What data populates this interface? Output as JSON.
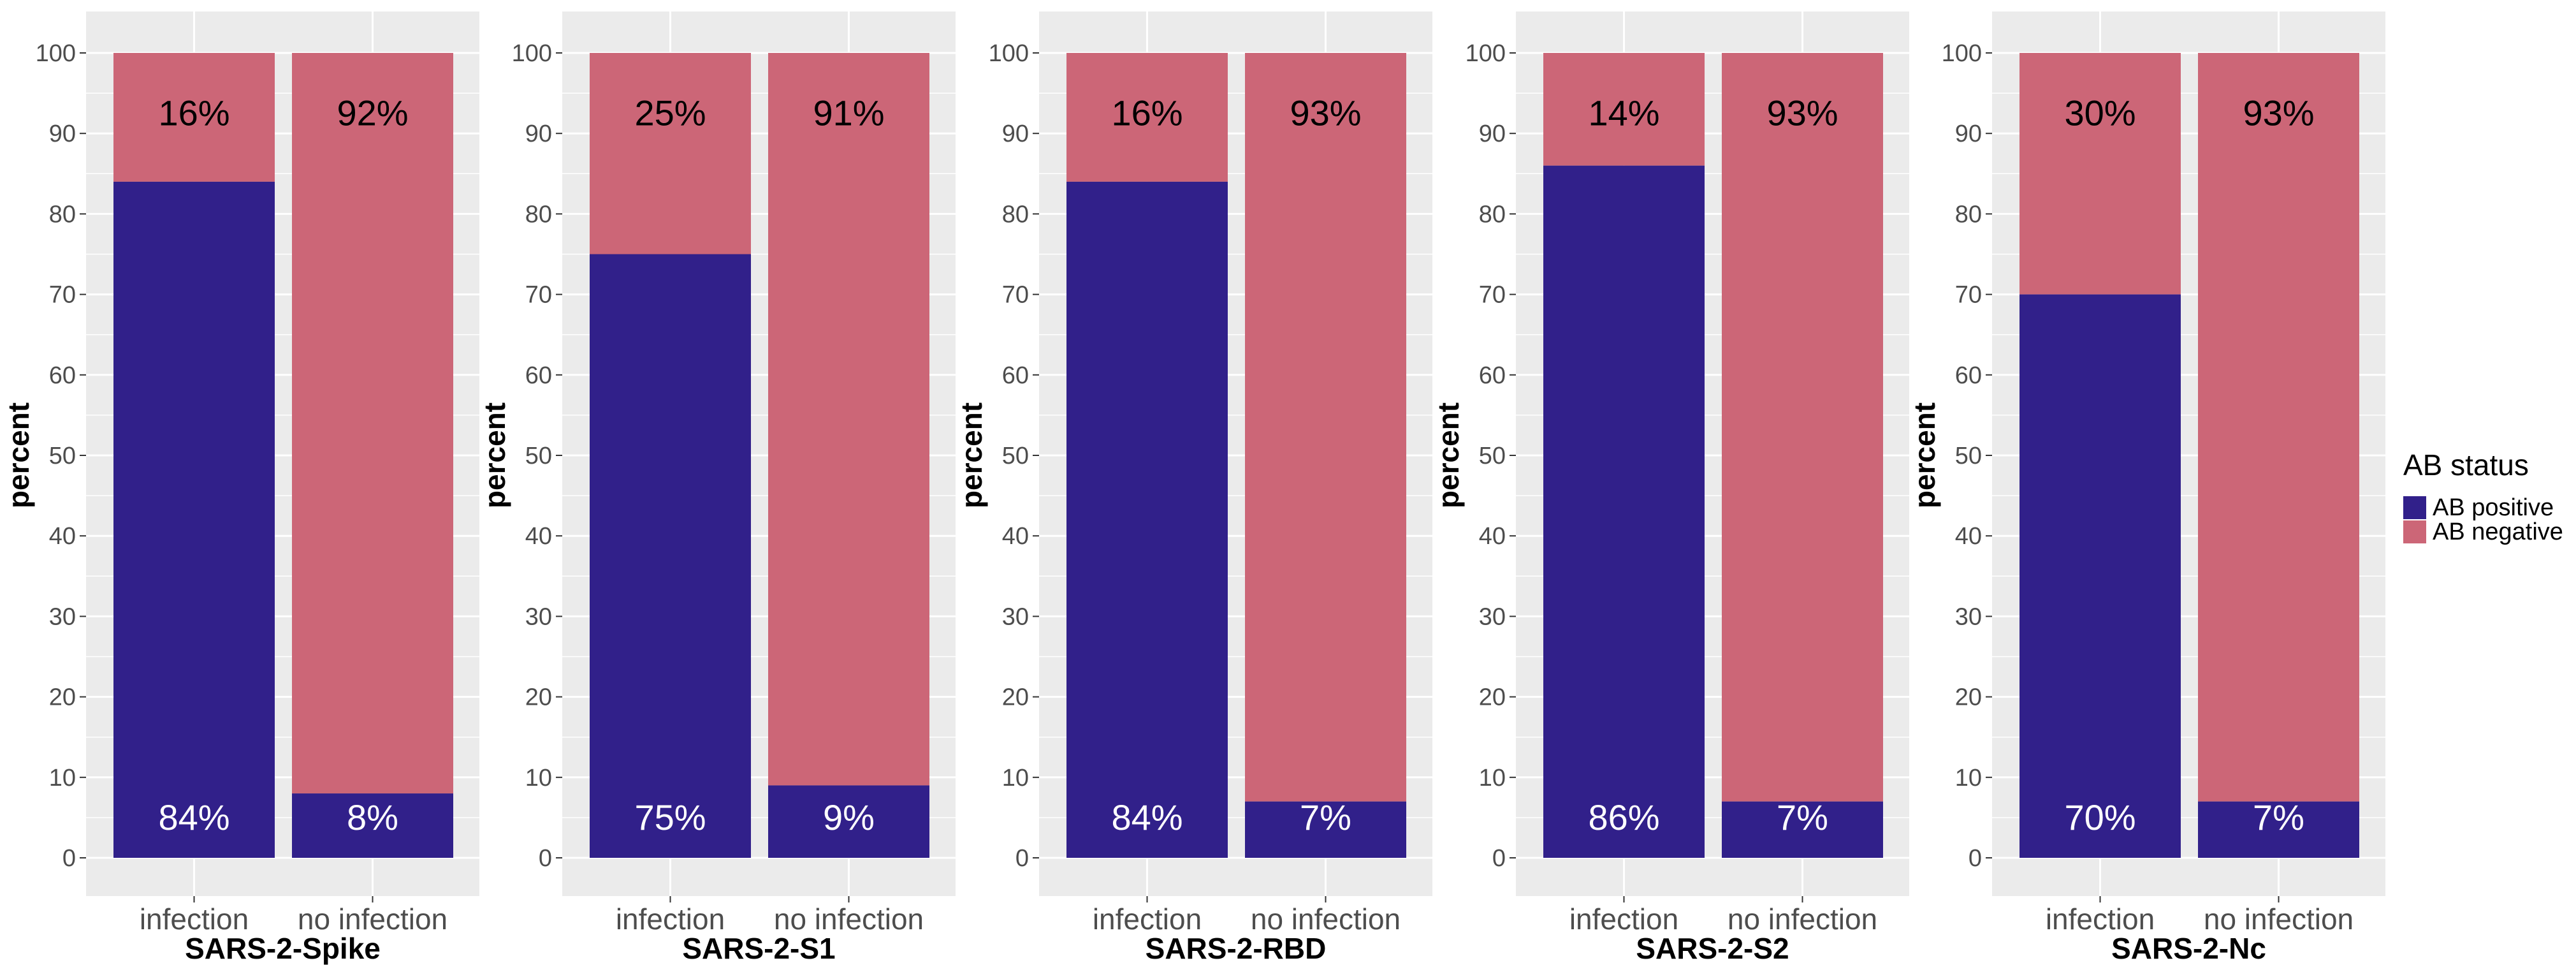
{
  "chart_data": {
    "type": "bar",
    "stacked": true,
    "ylim": [
      0,
      100
    ],
    "yticks": [
      0,
      10,
      20,
      30,
      40,
      50,
      60,
      70,
      80,
      90,
      100
    ],
    "ylabel": "percent",
    "categories": [
      "infection",
      "no infection"
    ],
    "legend": {
      "title": "AB status",
      "placement": "right",
      "entries": [
        {
          "name": "AB positive",
          "color": "#31208a"
        },
        {
          "name": "AB negative",
          "color": "#cc6677"
        }
      ]
    },
    "panels": [
      {
        "title": "SARS-2-Spike",
        "positive": [
          84,
          8
        ],
        "negative": [
          16,
          92
        ],
        "positive_labels": [
          "84%",
          "8%"
        ],
        "negative_labels": [
          "16%",
          "92%"
        ]
      },
      {
        "title": "SARS-2-S1",
        "positive": [
          75,
          9
        ],
        "negative": [
          25,
          91
        ],
        "positive_labels": [
          "75%",
          "9%"
        ],
        "negative_labels": [
          "25%",
          "91%"
        ]
      },
      {
        "title": "SARS-2-RBD",
        "positive": [
          84,
          7
        ],
        "negative": [
          16,
          93
        ],
        "positive_labels": [
          "84%",
          "7%"
        ],
        "negative_labels": [
          "16%",
          "93%"
        ]
      },
      {
        "title": "SARS-2-S2",
        "positive": [
          86,
          7
        ],
        "negative": [
          14,
          93
        ],
        "positive_labels": [
          "86%",
          "7%"
        ],
        "negative_labels": [
          "14%",
          "93%"
        ]
      },
      {
        "title": "SARS-2-Nc",
        "positive": [
          70,
          7
        ],
        "negative": [
          30,
          93
        ],
        "positive_labels": [
          "70%",
          "7%"
        ],
        "negative_labels": [
          "30%",
          "93%"
        ]
      }
    ],
    "colors": {
      "positive": "#31208a",
      "negative": "#cc6677",
      "panel_bg": "#ebebeb",
      "grid": "#ffffff",
      "positive_text": "#ffffff",
      "negative_text": "#000000"
    }
  }
}
